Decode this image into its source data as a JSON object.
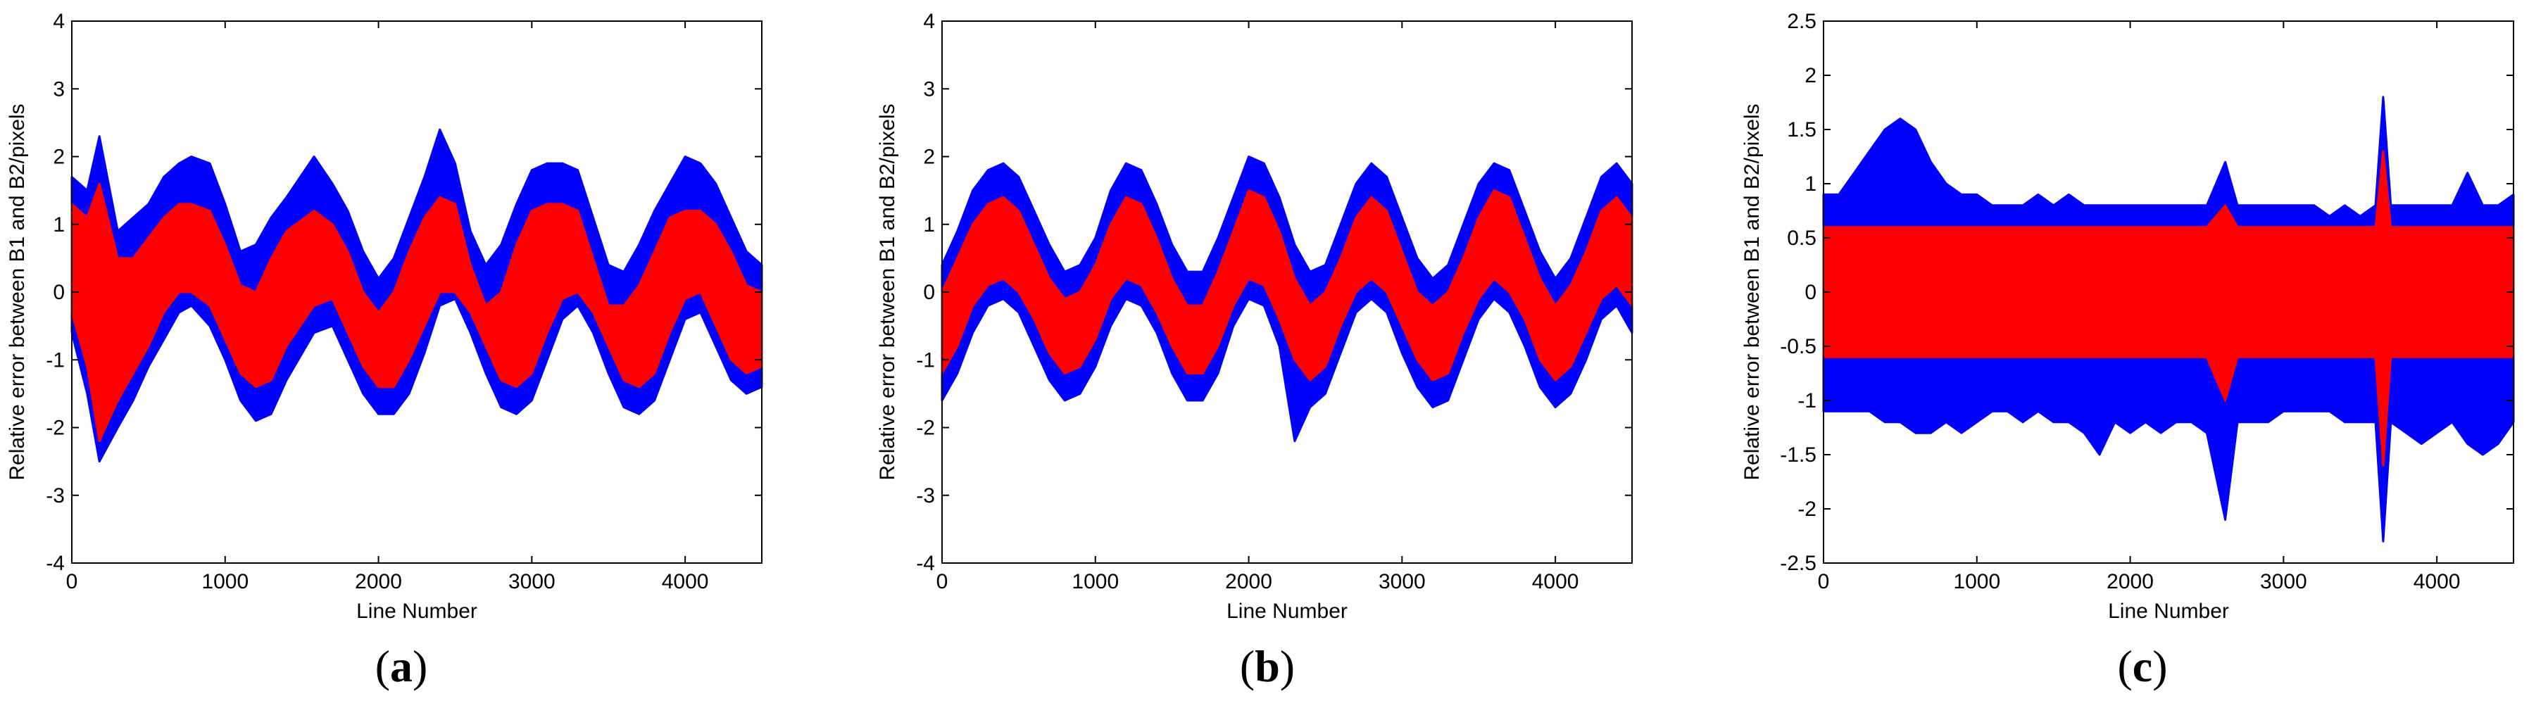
{
  "colors": {
    "background": "#ffffff",
    "outer_band": "#0000ff",
    "inner_band": "#ff0000",
    "axis": "#000000"
  },
  "chart_data": [
    {
      "type": "scatter",
      "panel_label": "a",
      "title": "",
      "xlabel": "Line Number",
      "ylabel": "Relative error between B1 and B2/pixels",
      "xlim": [
        0,
        4500
      ],
      "ylim": [
        -4,
        4
      ],
      "xticks": [
        0,
        1000,
        2000,
        3000,
        4000
      ],
      "yticks": [
        -4,
        -3,
        -2,
        -1,
        0,
        1,
        2,
        3,
        4
      ],
      "ytick_labels": [
        "-4",
        "-3",
        "-2",
        "-1",
        "0",
        "1",
        "2",
        "3",
        "4"
      ],
      "x": [
        0,
        100,
        180,
        300,
        400,
        500,
        600,
        700,
        780,
        900,
        1000,
        1100,
        1200,
        1300,
        1400,
        1580,
        1700,
        1800,
        1900,
        2000,
        2100,
        2200,
        2300,
        2400,
        2500,
        2600,
        2700,
        2800,
        2900,
        3000,
        3100,
        3200,
        3300,
        3400,
        3500,
        3600,
        3700,
        3800,
        3900,
        4000,
        4100,
        4200,
        4300,
        4400,
        4500
      ],
      "series": [
        {
          "name": "blue upper envelope",
          "color": "#0000ff",
          "values": [
            1.7,
            1.5,
            2.3,
            0.9,
            1.1,
            1.3,
            1.7,
            1.9,
            2.0,
            1.9,
            1.3,
            0.6,
            0.7,
            1.1,
            1.4,
            2.0,
            1.6,
            1.2,
            0.6,
            0.2,
            0.5,
            1.1,
            1.7,
            2.4,
            1.9,
            0.9,
            0.4,
            0.7,
            1.3,
            1.8,
            1.9,
            1.9,
            1.8,
            1.1,
            0.4,
            0.3,
            0.7,
            1.2,
            1.6,
            2.0,
            1.9,
            1.6,
            1.1,
            0.6,
            0.4
          ]
        },
        {
          "name": "blue lower envelope",
          "color": "#0000ff",
          "values": [
            -0.6,
            -1.5,
            -2.5,
            -2.0,
            -1.6,
            -1.1,
            -0.7,
            -0.3,
            -0.2,
            -0.5,
            -1.0,
            -1.6,
            -1.9,
            -1.8,
            -1.3,
            -0.6,
            -0.5,
            -1.0,
            -1.5,
            -1.8,
            -1.8,
            -1.5,
            -0.9,
            -0.2,
            -0.1,
            -0.6,
            -1.2,
            -1.7,
            -1.8,
            -1.6,
            -1.0,
            -0.4,
            -0.2,
            -0.6,
            -1.2,
            -1.7,
            -1.8,
            -1.6,
            -1.0,
            -0.4,
            -0.3,
            -0.8,
            -1.3,
            -1.5,
            -1.4
          ]
        },
        {
          "name": "red upper envelope",
          "color": "#ff0000",
          "values": [
            1.3,
            1.1,
            1.6,
            0.5,
            0.5,
            0.8,
            1.1,
            1.3,
            1.3,
            1.2,
            0.7,
            0.1,
            0.0,
            0.5,
            0.9,
            1.2,
            1.0,
            0.6,
            0.0,
            -0.3,
            0.0,
            0.6,
            1.1,
            1.4,
            1.3,
            0.4,
            -0.2,
            0.0,
            0.7,
            1.2,
            1.3,
            1.3,
            1.2,
            0.5,
            -0.2,
            -0.2,
            0.1,
            0.6,
            1.1,
            1.2,
            1.2,
            1.0,
            0.6,
            0.1,
            0.0
          ]
        },
        {
          "name": "red lower envelope",
          "color": "#ff0000",
          "values": [
            -0.3,
            -1.1,
            -2.2,
            -1.6,
            -1.2,
            -0.8,
            -0.3,
            0.0,
            0.0,
            -0.2,
            -0.7,
            -1.2,
            -1.4,
            -1.3,
            -0.8,
            -0.2,
            -0.1,
            -0.6,
            -1.1,
            -1.4,
            -1.4,
            -1.0,
            -0.5,
            0.0,
            0.0,
            -0.3,
            -0.8,
            -1.3,
            -1.4,
            -1.2,
            -0.6,
            -0.1,
            0.0,
            -0.3,
            -0.8,
            -1.3,
            -1.4,
            -1.2,
            -0.6,
            -0.1,
            0.0,
            -0.5,
            -1.0,
            -1.2,
            -1.1
          ]
        }
      ]
    },
    {
      "type": "scatter",
      "panel_label": "b",
      "title": "",
      "xlabel": "Line Number",
      "ylabel": "Relative error between B1 and B2/pixels",
      "xlim": [
        0,
        4500
      ],
      "ylim": [
        -4,
        4
      ],
      "xticks": [
        0,
        1000,
        2000,
        3000,
        4000
      ],
      "yticks": [
        -4,
        -3,
        -2,
        -1,
        0,
        1,
        2,
        3,
        4
      ],
      "ytick_labels": [
        "-4",
        "-3",
        "-2",
        "-1",
        "0",
        "1",
        "2",
        "3",
        "4"
      ],
      "x": [
        0,
        100,
        200,
        300,
        400,
        500,
        600,
        700,
        800,
        900,
        1000,
        1100,
        1200,
        1300,
        1400,
        1500,
        1600,
        1700,
        1800,
        1900,
        2000,
        2100,
        2200,
        2300,
        2400,
        2500,
        2600,
        2700,
        2800,
        2900,
        3000,
        3100,
        3200,
        3300,
        3400,
        3500,
        3600,
        3700,
        3800,
        3900,
        4000,
        4100,
        4200,
        4300,
        4400,
        4500
      ],
      "series": [
        {
          "name": "blue upper envelope",
          "color": "#0000ff",
          "values": [
            0.4,
            0.9,
            1.5,
            1.8,
            1.9,
            1.7,
            1.2,
            0.7,
            0.3,
            0.4,
            0.8,
            1.5,
            1.9,
            1.8,
            1.3,
            0.7,
            0.3,
            0.3,
            0.8,
            1.4,
            2.0,
            1.9,
            1.4,
            0.7,
            0.3,
            0.4,
            1.0,
            1.6,
            1.9,
            1.7,
            1.1,
            0.5,
            0.2,
            0.4,
            1.0,
            1.6,
            1.9,
            1.8,
            1.2,
            0.6,
            0.2,
            0.5,
            1.1,
            1.7,
            1.9,
            1.6
          ]
        },
        {
          "name": "blue lower envelope",
          "color": "#0000ff",
          "values": [
            -1.6,
            -1.2,
            -0.6,
            -0.2,
            -0.1,
            -0.3,
            -0.8,
            -1.3,
            -1.6,
            -1.5,
            -1.1,
            -0.5,
            -0.1,
            -0.2,
            -0.6,
            -1.2,
            -1.6,
            -1.6,
            -1.2,
            -0.5,
            -0.1,
            -0.2,
            -0.8,
            -2.2,
            -1.7,
            -1.5,
            -0.9,
            -0.3,
            -0.1,
            -0.3,
            -0.9,
            -1.4,
            -1.7,
            -1.6,
            -1.0,
            -0.4,
            -0.1,
            -0.3,
            -0.8,
            -1.4,
            -1.7,
            -1.5,
            -1.0,
            -0.4,
            -0.2,
            -0.6
          ]
        },
        {
          "name": "red upper envelope",
          "color": "#ff0000",
          "values": [
            0.0,
            0.5,
            1.0,
            1.3,
            1.4,
            1.2,
            0.7,
            0.2,
            -0.1,
            0.0,
            0.4,
            1.0,
            1.4,
            1.3,
            0.8,
            0.2,
            -0.2,
            -0.2,
            0.3,
            0.9,
            1.5,
            1.4,
            0.9,
            0.2,
            -0.2,
            0.0,
            0.5,
            1.1,
            1.4,
            1.2,
            0.6,
            0.0,
            -0.2,
            0.0,
            0.5,
            1.1,
            1.5,
            1.4,
            0.8,
            0.2,
            -0.2,
            0.1,
            0.6,
            1.2,
            1.4,
            1.1
          ]
        },
        {
          "name": "red lower envelope",
          "color": "#ff0000",
          "values": [
            -1.2,
            -0.8,
            -0.2,
            0.1,
            0.2,
            0.0,
            -0.4,
            -0.9,
            -1.2,
            -1.1,
            -0.7,
            -0.1,
            0.2,
            0.1,
            -0.3,
            -0.8,
            -1.2,
            -1.2,
            -0.8,
            -0.2,
            0.2,
            0.1,
            -0.4,
            -1.0,
            -1.3,
            -1.1,
            -0.5,
            0.0,
            0.2,
            0.0,
            -0.5,
            -1.0,
            -1.3,
            -1.2,
            -0.6,
            -0.1,
            0.2,
            0.0,
            -0.4,
            -1.0,
            -1.3,
            -1.1,
            -0.6,
            -0.1,
            0.1,
            -0.2
          ]
        }
      ]
    },
    {
      "type": "scatter",
      "panel_label": "c",
      "title": "",
      "xlabel": "Line Number",
      "ylabel": "Relative error between B1 and B2/pixels",
      "xlim": [
        0,
        4500
      ],
      "ylim": [
        -2.5,
        2.5
      ],
      "xticks": [
        0,
        1000,
        2000,
        3000,
        4000
      ],
      "yticks": [
        -2.5,
        -2,
        -1.5,
        -1,
        -0.5,
        0,
        0.5,
        1,
        1.5,
        2,
        2.5
      ],
      "ytick_labels": [
        "-2.5",
        "-2",
        "-1.5",
        "-1",
        "-0.5",
        "0",
        "0.5",
        "1",
        "1.5",
        "2",
        "2.5"
      ],
      "x": [
        0,
        100,
        200,
        300,
        400,
        500,
        600,
        700,
        800,
        900,
        1000,
        1100,
        1200,
        1300,
        1400,
        1500,
        1600,
        1700,
        1800,
        1900,
        2000,
        2100,
        2200,
        2300,
        2400,
        2500,
        2620,
        2700,
        2800,
        2900,
        3000,
        3100,
        3200,
        3300,
        3400,
        3500,
        3600,
        3650,
        3700,
        3800,
        3900,
        4000,
        4100,
        4200,
        4300,
        4400,
        4500
      ],
      "series": [
        {
          "name": "blue upper envelope",
          "color": "#0000ff",
          "values": [
            0.9,
            0.9,
            1.1,
            1.3,
            1.5,
            1.6,
            1.5,
            1.2,
            1.0,
            0.9,
            0.9,
            0.8,
            0.8,
            0.8,
            0.9,
            0.8,
            0.9,
            0.8,
            0.8,
            0.8,
            0.8,
            0.8,
            0.8,
            0.8,
            0.8,
            0.8,
            1.2,
            0.8,
            0.8,
            0.8,
            0.8,
            0.8,
            0.8,
            0.7,
            0.8,
            0.7,
            0.8,
            1.8,
            0.8,
            0.8,
            0.8,
            0.8,
            0.8,
            1.1,
            0.8,
            0.8,
            0.9
          ]
        },
        {
          "name": "blue lower envelope",
          "color": "#0000ff",
          "values": [
            -1.1,
            -1.1,
            -1.1,
            -1.1,
            -1.2,
            -1.2,
            -1.3,
            -1.3,
            -1.2,
            -1.3,
            -1.2,
            -1.1,
            -1.1,
            -1.2,
            -1.1,
            -1.2,
            -1.2,
            -1.3,
            -1.5,
            -1.2,
            -1.3,
            -1.2,
            -1.3,
            -1.2,
            -1.2,
            -1.3,
            -2.1,
            -1.2,
            -1.2,
            -1.2,
            -1.1,
            -1.1,
            -1.1,
            -1.1,
            -1.2,
            -1.2,
            -1.2,
            -2.3,
            -1.2,
            -1.3,
            -1.4,
            -1.3,
            -1.2,
            -1.4,
            -1.5,
            -1.4,
            -1.2
          ]
        },
        {
          "name": "red upper envelope",
          "color": "#ff0000",
          "values": [
            0.6,
            0.6,
            0.6,
            0.6,
            0.6,
            0.6,
            0.6,
            0.6,
            0.6,
            0.6,
            0.6,
            0.6,
            0.6,
            0.6,
            0.6,
            0.6,
            0.6,
            0.6,
            0.6,
            0.6,
            0.6,
            0.6,
            0.6,
            0.6,
            0.6,
            0.6,
            0.8,
            0.6,
            0.6,
            0.6,
            0.6,
            0.6,
            0.6,
            0.6,
            0.6,
            0.6,
            0.6,
            1.3,
            0.6,
            0.6,
            0.6,
            0.6,
            0.6,
            0.6,
            0.6,
            0.6,
            0.6
          ]
        },
        {
          "name": "red lower envelope",
          "color": "#ff0000",
          "values": [
            -0.6,
            -0.6,
            -0.6,
            -0.6,
            -0.6,
            -0.6,
            -0.6,
            -0.6,
            -0.6,
            -0.6,
            -0.6,
            -0.6,
            -0.6,
            -0.6,
            -0.6,
            -0.6,
            -0.6,
            -0.6,
            -0.6,
            -0.6,
            -0.6,
            -0.6,
            -0.6,
            -0.6,
            -0.6,
            -0.6,
            -1.0,
            -0.6,
            -0.6,
            -0.6,
            -0.6,
            -0.6,
            -0.6,
            -0.6,
            -0.6,
            -0.6,
            -0.6,
            -1.6,
            -0.6,
            -0.6,
            -0.6,
            -0.6,
            -0.6,
            -0.6,
            -0.6,
            -0.6,
            -0.6
          ]
        }
      ]
    }
  ]
}
